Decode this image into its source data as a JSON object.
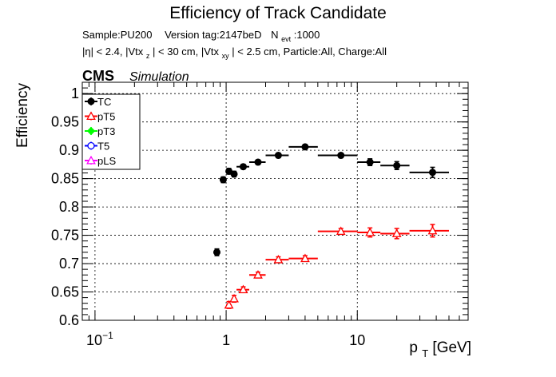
{
  "chart_data": {
    "type": "scatter",
    "title": "Efficiency of Track Candidate",
    "subtitle_line1": {
      "sample": "Sample:PU200",
      "version": "Version tag:2147beD",
      "nevt_prefix": "N",
      "nevt_sub": "evt",
      "nevt_value": ":1000"
    },
    "subtitle_line2": {
      "p1": "|η| < 2.4, |Vtx",
      "s1": "z",
      "p2": "| < 30 cm, |Vtx",
      "s2": "xy",
      "p3": "| < 2.5 cm, Particle:All, Charge:All"
    },
    "cms_label": "CMS",
    "simulation_label": "Simulation",
    "ylabel": "Efficiency",
    "xlabel_main": "p",
    "xlabel_sub": "T",
    "xlabel_unit": " [GeV]",
    "xscale": "log",
    "xlim": [
      0.08,
      70
    ],
    "ylim": [
      0.6,
      1.02
    ],
    "grid": true,
    "legend_position": "top-left",
    "xticks": [
      {
        "value": 0.1,
        "base": "10",
        "exp": "−1"
      },
      {
        "value": 1,
        "base": "1",
        "exp": ""
      },
      {
        "value": 10,
        "base": "10",
        "exp": ""
      }
    ],
    "yticks": [
      0.6,
      0.65,
      0.7,
      0.75,
      0.8,
      0.85,
      0.9,
      0.95,
      1
    ],
    "ytick_labels": [
      "0.6",
      "0.65",
      "0.7",
      "0.75",
      "0.8",
      "0.85",
      "0.9",
      "0.95",
      "1"
    ],
    "series": [
      {
        "name": "TC",
        "color": "#000000",
        "marker": "filled-circle",
        "points": [
          {
            "x": 0.85,
            "xlo": 0.8,
            "xhi": 0.9,
            "y": 0.72,
            "ey": 0.006
          },
          {
            "x": 0.95,
            "xlo": 0.9,
            "xhi": 1.0,
            "y": 0.848,
            "ey": 0.005
          },
          {
            "x": 1.05,
            "xlo": 1.0,
            "xhi": 1.1,
            "y": 0.863,
            "ey": 0.005
          },
          {
            "x": 1.15,
            "xlo": 1.1,
            "xhi": 1.2,
            "y": 0.858,
            "ey": 0.005
          },
          {
            "x": 1.35,
            "xlo": 1.2,
            "xhi": 1.5,
            "y": 0.871,
            "ey": 0.004
          },
          {
            "x": 1.75,
            "xlo": 1.5,
            "xhi": 2.0,
            "y": 0.879,
            "ey": 0.004
          },
          {
            "x": 2.5,
            "xlo": 2.0,
            "xhi": 3.0,
            "y": 0.891,
            "ey": 0.004
          },
          {
            "x": 4.0,
            "xlo": 3.0,
            "xhi": 5.0,
            "y": 0.906,
            "ey": 0.004
          },
          {
            "x": 7.5,
            "xlo": 5.0,
            "xhi": 10.0,
            "y": 0.891,
            "ey": 0.004
          },
          {
            "x": 12.5,
            "xlo": 10.0,
            "xhi": 15.0,
            "y": 0.879,
            "ey": 0.006
          },
          {
            "x": 20.0,
            "xlo": 15.0,
            "xhi": 25.0,
            "y": 0.873,
            "ey": 0.007
          },
          {
            "x": 37.5,
            "xlo": 25.0,
            "xhi": 50.0,
            "y": 0.861,
            "ey": 0.009
          }
        ]
      },
      {
        "name": "pT5",
        "color": "#ff0000",
        "marker": "open-triangle",
        "points": [
          {
            "x": 1.05,
            "xlo": 1.0,
            "xhi": 1.1,
            "y": 0.627,
            "ey": 0.006
          },
          {
            "x": 1.15,
            "xlo": 1.1,
            "xhi": 1.2,
            "y": 0.638,
            "ey": 0.006
          },
          {
            "x": 1.35,
            "xlo": 1.2,
            "xhi": 1.5,
            "y": 0.654,
            "ey": 0.005
          },
          {
            "x": 1.75,
            "xlo": 1.5,
            "xhi": 2.0,
            "y": 0.68,
            "ey": 0.005
          },
          {
            "x": 2.5,
            "xlo": 2.0,
            "xhi": 3.0,
            "y": 0.707,
            "ey": 0.005
          },
          {
            "x": 4.0,
            "xlo": 3.0,
            "xhi": 5.0,
            "y": 0.709,
            "ey": 0.005
          },
          {
            "x": 7.5,
            "xlo": 5.0,
            "xhi": 10.0,
            "y": 0.757,
            "ey": 0.005
          },
          {
            "x": 12.5,
            "xlo": 10.0,
            "xhi": 15.0,
            "y": 0.755,
            "ey": 0.008
          },
          {
            "x": 20.0,
            "xlo": 15.0,
            "xhi": 25.0,
            "y": 0.753,
            "ey": 0.009
          },
          {
            "x": 37.5,
            "xlo": 25.0,
            "xhi": 50.0,
            "y": 0.758,
            "ey": 0.011
          }
        ]
      },
      {
        "name": "pT3",
        "color": "#00ff00",
        "marker": "filled-diamond",
        "points": []
      },
      {
        "name": "T5",
        "color": "#0000ff",
        "marker": "open-circle",
        "points": []
      },
      {
        "name": "pLS",
        "color": "#ff00ff",
        "marker": "open-triangle",
        "points": []
      }
    ]
  }
}
